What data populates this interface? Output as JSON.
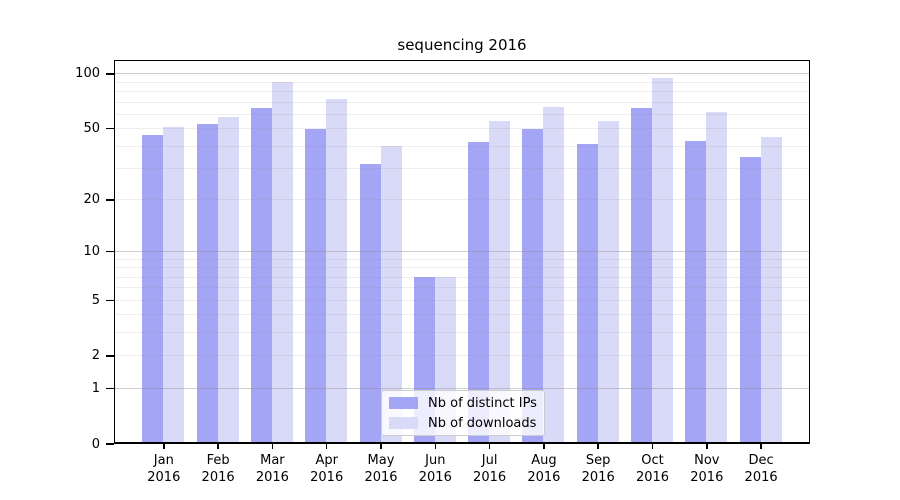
{
  "chart_data": {
    "type": "bar",
    "title": "sequencing 2016",
    "months": [
      "Jan",
      "Feb",
      "Mar",
      "Apr",
      "May",
      "Jun",
      "Jul",
      "Aug",
      "Sep",
      "Oct",
      "Nov",
      "Dec"
    ],
    "year_label": "2016",
    "categories": [
      "Jan 2016",
      "Feb 2016",
      "Mar 2016",
      "Apr 2016",
      "May 2016",
      "Jun 2016",
      "Jul 2016",
      "Aug 2016",
      "Sep 2016",
      "Oct 2016",
      "Nov 2016",
      "Dec 2016"
    ],
    "series": [
      {
        "name": "Nb of distinct IPs",
        "color": "#a5a5f5",
        "values": [
          46,
          53,
          65,
          50,
          32,
          7,
          42,
          50,
          41,
          65,
          43,
          35
        ]
      },
      {
        "name": "Nb of downloads",
        "color": "#d9d9f8",
        "values": [
          51,
          58,
          90,
          73,
          40,
          7,
          55,
          66,
          55,
          95,
          62,
          45
        ]
      }
    ],
    "xlabel": "",
    "ylabel": "",
    "yscale": "log1p",
    "yticks": [
      0,
      1,
      2,
      5,
      10,
      20,
      50,
      100
    ],
    "ylim": [
      0,
      119
    ],
    "major_gridlines": [
      1,
      10,
      100
    ],
    "minor_gridlines": [
      2,
      3,
      4,
      5,
      6,
      7,
      8,
      9,
      20,
      30,
      40,
      50,
      60,
      70,
      80,
      90
    ],
    "grid": true,
    "legend_position": "lower center"
  },
  "colors": {
    "background": "#ffffff",
    "axis": "#000000",
    "minor_grid": "rgba(140,140,140,0.15)",
    "major_grid": "rgba(140,140,140,0.42)",
    "legend_border": "#cccccc",
    "bar_distinct_ips": "#a5a5f5",
    "bar_downloads": "#d9d9f8"
  }
}
